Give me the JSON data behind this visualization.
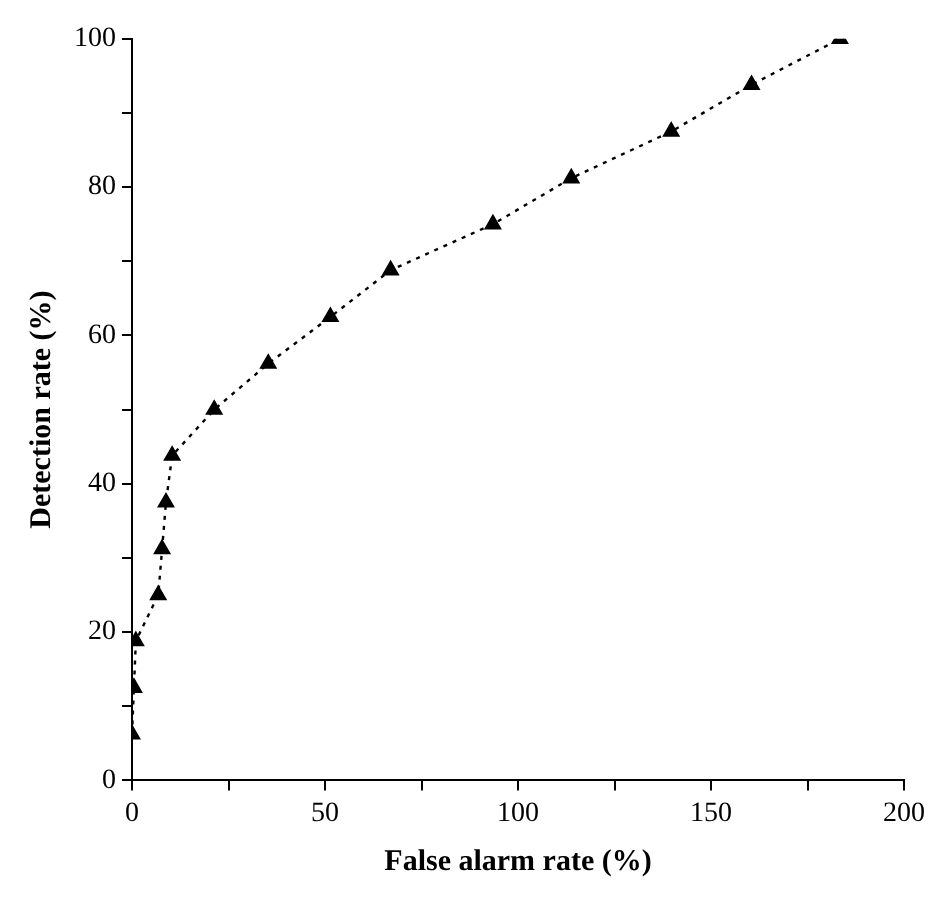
{
  "chart_data": {
    "type": "line",
    "xlabel": "False alarm rate (%)",
    "ylabel": "Detection rate (%)",
    "series": [
      {
        "color": "#000000",
        "x": [
          0,
          0.5,
          1,
          6.8,
          7.8,
          8.8,
          10.4,
          21.3,
          35.3,
          51.4,
          67,
          93.5,
          113.8,
          139.7,
          160.5,
          183.4
        ],
        "values": [
          6.2,
          12.5,
          18.8,
          25,
          31.2,
          37.5,
          43.8,
          50,
          56.2,
          62.5,
          68.8,
          75,
          81.2,
          87.5,
          93.8,
          100
        ]
      }
    ],
    "xlim": [
      0,
      200
    ],
    "xticks": [
      0,
      {
        "value": 25,
        "label": null
      },
      50,
      {
        "value": 75,
        "label": null
      },
      100,
      {
        "value": 125,
        "label": null
      },
      150,
      {
        "value": 175,
        "label": null
      },
      200
    ],
    "ylim": [
      0,
      100
    ],
    "yticks": [
      0,
      {
        "value": 10,
        "label": null
      },
      20,
      {
        "value": 30,
        "label": null
      },
      40,
      {
        "value": 50,
        "label": null
      },
      60,
      {
        "value": 70,
        "label": null
      },
      80,
      {
        "value": 90,
        "label": null
      },
      100
    ],
    "marker": "triangle",
    "line_style": "dotted",
    "grid": false,
    "legend": false
  }
}
